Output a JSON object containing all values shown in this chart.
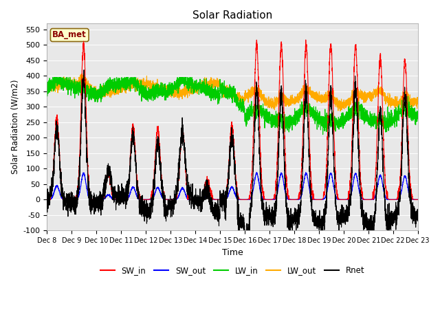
{
  "title": "Solar Radiation",
  "ylabel": "Solar Radiation (W/m2)",
  "xlabel": "Time",
  "ylim": [
    -100,
    570
  ],
  "yticks": [
    -100,
    -50,
    0,
    50,
    100,
    150,
    200,
    250,
    300,
    350,
    400,
    450,
    500,
    550
  ],
  "colors": {
    "SW_in": "#ff0000",
    "SW_out": "#0000ff",
    "LW_in": "#00cc00",
    "LW_out": "#ffaa00",
    "Rnet": "#000000"
  },
  "legend_label": "BA_met",
  "n_points": 4320,
  "start_day": 8,
  "end_day": 23,
  "tick_labels": [
    "Dec 8",
    "Dec 9",
    "Dec 10",
    "Dec 11",
    "Dec 12",
    "Dec 13",
    "Dec 14",
    "Dec 15",
    "Dec 16",
    "Dec 17",
    "Dec 18",
    "Dec 19",
    "Dec 20",
    "Dec 21",
    "Dec 22",
    "Dec 23"
  ]
}
